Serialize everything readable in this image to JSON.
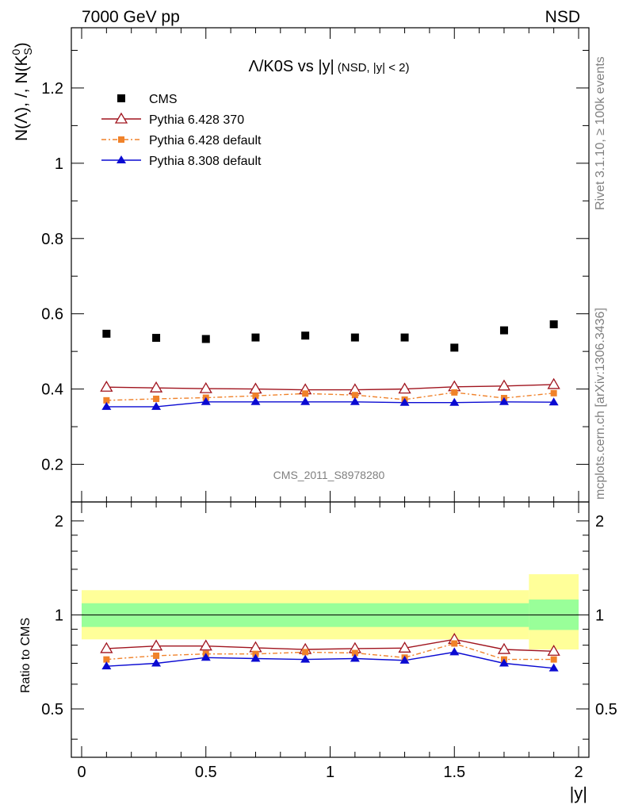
{
  "header": {
    "left_label": "7000 GeV pp",
    "right_label": "NSD"
  },
  "side_labels": {
    "rivet": "Rivet 3.1.10, ≥ 100k events",
    "mcplots": "mcplots.cern.ch [arXiv:1306.3436]"
  },
  "watermark": "CMS_2011_S8978280",
  "chart_data": {
    "type": "scatter",
    "title": "Λ/K0S vs |y|",
    "title_sub": "(NSD, |y| < 2)",
    "xlabel": "|y|",
    "ylabel": "N(Λ), /, N(K",
    "ylabel_sup": "0",
    "ylabel_sub": "S",
    "ylabel_close": ")",
    "ratio_ylabel": "Ratio to CMS",
    "xlim": [
      0,
      2
    ],
    "ylim": [
      0.1,
      1.36
    ],
    "ratio_ylim": [
      0.35,
      2.3
    ],
    "ratio_scale": "log",
    "x_ticks": [
      "0",
      "0.5",
      "1",
      "1.5",
      "2"
    ],
    "y_ticks": [
      "0.2",
      "0.4",
      "0.6",
      "0.8",
      "1",
      "1.2"
    ],
    "ratio_ticks": [
      "0.5",
      "1",
      "2"
    ],
    "x": [
      0.1,
      0.3,
      0.5,
      0.7,
      0.9,
      1.1,
      1.3,
      1.5,
      1.7,
      1.9
    ],
    "x_edges": [
      0.0,
      0.2,
      0.4,
      0.6,
      0.8,
      1.0,
      1.2,
      1.4,
      1.6,
      1.8,
      2.0
    ],
    "legend_position": "top-left",
    "series": [
      {
        "name": "CMS",
        "color": "#000000",
        "marker": "square",
        "values": [
          0.547,
          0.536,
          0.533,
          0.537,
          0.542,
          0.537,
          0.537,
          0.51,
          0.556,
          0.572
        ],
        "ratio": [
          1,
          1,
          1,
          1,
          1,
          1,
          1,
          1,
          1,
          1
        ]
      },
      {
        "name": "Pythia 6.428 370",
        "color": "#a0141e",
        "marker": "open-triangle",
        "values": [
          0.405,
          0.403,
          0.401,
          0.4,
          0.398,
          0.398,
          0.4,
          0.406,
          0.408,
          0.412
        ],
        "ratio": [
          0.78,
          0.795,
          0.795,
          0.785,
          0.775,
          0.78,
          0.783,
          0.835,
          0.775,
          0.765
        ]
      },
      {
        "name": "Pythia 6.428 default",
        "color": "#f0822a",
        "marker": "small-square",
        "values": [
          0.37,
          0.374,
          0.377,
          0.382,
          0.388,
          0.384,
          0.372,
          0.391,
          0.376,
          0.389
        ],
        "ratio": [
          0.72,
          0.74,
          0.75,
          0.75,
          0.76,
          0.755,
          0.73,
          0.81,
          0.72,
          0.72
        ]
      },
      {
        "name": "Pythia 8.308 default",
        "color": "#0a0ad2",
        "marker": "triangle",
        "values": [
          0.353,
          0.353,
          0.366,
          0.366,
          0.366,
          0.366,
          0.364,
          0.364,
          0.366,
          0.365
        ],
        "ratio": [
          0.685,
          0.7,
          0.73,
          0.725,
          0.72,
          0.725,
          0.715,
          0.76,
          0.7,
          0.675
        ]
      }
    ],
    "bands": {
      "yellow_color": "#ffff99",
      "green_color": "#99ff99",
      "yellow": [
        {
          "x0": 0.0,
          "x1": 1.8,
          "lo": 0.835,
          "hi": 1.2
        },
        {
          "x0": 1.8,
          "x1": 2.0,
          "lo": 0.775,
          "hi": 1.35
        }
      ],
      "green": [
        {
          "x0": 0.0,
          "x1": 1.8,
          "lo": 0.915,
          "hi": 1.09
        },
        {
          "x0": 1.8,
          "x1": 2.0,
          "lo": 0.895,
          "hi": 1.12
        }
      ]
    }
  }
}
